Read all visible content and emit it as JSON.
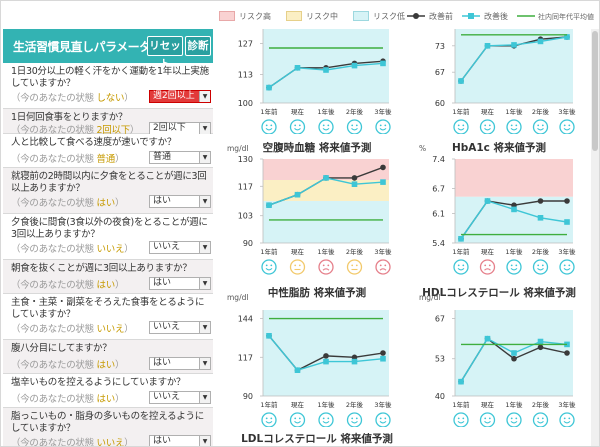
{
  "legend": {
    "risk_high": "リスク高",
    "risk_mid": "リスク中",
    "risk_low": "リスク低",
    "before": "改善前",
    "after": "改善後",
    "average": "社内同年代平均値"
  },
  "colors": {
    "teal": "#33b3b3",
    "before": "#3a3a3a",
    "after": "#3ec6d6",
    "average": "#3fae3f",
    "risk_high": "#f9d2d2",
    "risk_mid": "#fbefc4",
    "risk_low": "#d6f3f6",
    "face_good": "#3ec6d6",
    "face_mid": "#f2c96b",
    "face_bad": "#e57f8a"
  },
  "panel": {
    "title": "生活習慣見直しパラメータ",
    "reset": "リセット",
    "diagnose": "診断",
    "questions": [
      {
        "text": "1日30分以上の軽く汗をかく運動を1年以上実施していますか？",
        "state_prefix": "（今のあなたの状態",
        "state_value": "しない",
        "state_suffix": "）",
        "select": "週2回以上"
      },
      {
        "text": "1日何回食事をとりますか？",
        "state_prefix": "（今のあなたの状態",
        "state_value": "2回以下",
        "state_suffix": "）",
        "select": "2回以下"
      },
      {
        "text": "人と比較して食べる速度が速いですか？",
        "state_prefix": "（今のあなたの状態",
        "state_value": "普通",
        "state_suffix": "）",
        "select": "普通"
      },
      {
        "text": "就寝前の2時間以内に夕食をとることが週に3回以上ありますか？",
        "state_prefix": "（今のあなたの状態",
        "state_value": "はい",
        "state_suffix": "）",
        "select": "はい"
      },
      {
        "text": "夕食後に間食(3食以外の夜食)をとることが週に3回以上ありますか？",
        "state_prefix": "（今のあなたの状態",
        "state_value": "いいえ",
        "state_suffix": "）",
        "select": "いいえ"
      },
      {
        "text": "朝食を抜くことが週に3回以上ありますか？",
        "state_prefix": "（今のあなたの状態",
        "state_value": "はい",
        "state_suffix": "）",
        "select": "はい"
      },
      {
        "text": "主食・主菜・副菜をそろえた食事をとるようにしていますか？",
        "state_prefix": "（今のあなたの状態",
        "state_value": "いいえ",
        "state_suffix": "）",
        "select": "いいえ"
      },
      {
        "text": "腹八分目にしてますか？",
        "state_prefix": "（今のあなたの状態",
        "state_value": "はい",
        "state_suffix": "）",
        "select": "はい"
      },
      {
        "text": "塩辛いものを控えるようにしていますか？",
        "state_prefix": "（今のあなたの状態",
        "state_value": "はい",
        "state_suffix": "）",
        "select": "いいえ"
      },
      {
        "text": "脂っこいもの・脂身の多いものを控えるようにしていますか？",
        "state_prefix": "（今のあなたの状態",
        "state_value": "いいえ",
        "state_suffix": "）",
        "select": "はい"
      }
    ]
  },
  "chart_data": [
    {
      "type": "line",
      "title": "",
      "unit": "",
      "x": [
        "1年前",
        "現在",
        "1年後",
        "2年後",
        "3年後"
      ],
      "y_ticks": [
        100,
        113,
        127
      ],
      "ylim": [
        100,
        130
      ],
      "bands": [
        {
          "risk": "low",
          "from": 100,
          "to": 130
        }
      ],
      "series": [
        {
          "name": "改善前",
          "values": [
            107,
            116,
            116,
            118,
            119
          ]
        },
        {
          "name": "改善後",
          "values": [
            107,
            116,
            115,
            117,
            118
          ]
        },
        {
          "name": "社内同年代平均値",
          "values": [
            125,
            125,
            125,
            125,
            125
          ]
        }
      ],
      "faces": [
        "good",
        "good",
        "good",
        "good",
        "good"
      ]
    },
    {
      "type": "line",
      "title": "",
      "unit": "",
      "x": [
        "1年前",
        "現在",
        "1年後",
        "2年後",
        "3年後"
      ],
      "y_ticks": [
        60,
        67,
        73
      ],
      "ylim": [
        60,
        75
      ],
      "bands": [
        {
          "risk": "low",
          "from": 60,
          "to": 75
        }
      ],
      "series": [
        {
          "name": "改善前",
          "values": [
            65,
            73,
            73,
            74.5,
            75
          ]
        },
        {
          "name": "改善後",
          "values": [
            65,
            73,
            73.2,
            74,
            75
          ]
        },
        {
          "name": "社内同年代平均値",
          "values": [
            75.5,
            75.5,
            75.5,
            75.5,
            75.5
          ]
        }
      ],
      "faces": [
        "good",
        "good",
        "good",
        "good",
        "good"
      ]
    },
    {
      "type": "line",
      "title": "空腹時血糖 将来値予測",
      "unit": "mg/dl",
      "x": [
        "1年前",
        "現在",
        "1年後",
        "2年後",
        "3年後"
      ],
      "y_ticks": [
        90,
        103,
        117,
        130
      ],
      "ylim": [
        90,
        130
      ],
      "bands": [
        {
          "risk": "high",
          "from": 120,
          "to": 130
        },
        {
          "risk": "mid",
          "from": 110,
          "to": 120
        },
        {
          "risk": "low",
          "from": 90,
          "to": 110
        }
      ],
      "series": [
        {
          "name": "改善前",
          "values": [
            108,
            113,
            121,
            121,
            126
          ]
        },
        {
          "name": "改善後",
          "values": [
            108,
            113,
            121,
            118,
            119
          ]
        },
        {
          "name": "社内同年代平均値",
          "values": [
            101,
            101,
            101,
            101,
            101
          ]
        }
      ],
      "faces": [
        "good",
        "mid",
        "bad",
        "mid",
        "bad"
      ]
    },
    {
      "type": "line",
      "title": "HbA1c 将来値予測",
      "unit": "%",
      "x": [
        "1年前",
        "現在",
        "1年後",
        "2年後",
        "3年後"
      ],
      "y_ticks": [
        5.4,
        6.1,
        6.7,
        7.4
      ],
      "ylim": [
        5.4,
        7.4
      ],
      "bands": [
        {
          "risk": "high",
          "from": 6.5,
          "to": 7.4
        },
        {
          "risk": "low",
          "from": 5.4,
          "to": 6.5
        }
      ],
      "series": [
        {
          "name": "改善前",
          "values": [
            5.5,
            6.4,
            6.3,
            6.4,
            6.4
          ]
        },
        {
          "name": "改善後",
          "values": [
            5.5,
            6.4,
            6.2,
            6.0,
            5.9
          ]
        },
        {
          "name": "社内同年代平均値",
          "values": [
            5.6,
            5.6,
            5.6,
            5.6,
            5.6
          ]
        }
      ],
      "faces": [
        "good",
        "bad",
        "good",
        "good",
        "good"
      ]
    },
    {
      "type": "line",
      "title": "中性脂肪 将来値予測",
      "unit": "mg/dl",
      "x": [
        "1年前",
        "現在",
        "1年後",
        "2年後",
        "3年後"
      ],
      "y_ticks": [
        90,
        117,
        144
      ],
      "ylim": [
        90,
        150
      ],
      "bands": [
        {
          "risk": "low",
          "from": 90,
          "to": 150
        }
      ],
      "series": [
        {
          "name": "改善前",
          "values": [
            132,
            108,
            118,
            117,
            120
          ]
        },
        {
          "name": "改善後",
          "values": [
            132,
            108,
            114,
            114,
            116
          ]
        },
        {
          "name": "社内同年代平均値",
          "values": [
            144,
            144,
            144,
            144,
            144
          ]
        }
      ],
      "faces": [
        "good",
        "good",
        "good",
        "good",
        "good"
      ]
    },
    {
      "type": "line",
      "title": "HDLコレステロール 将来値予測",
      "unit": "mg/dl",
      "x": [
        "1年前",
        "現在",
        "1年後",
        "2年後",
        "3年後"
      ],
      "y_ticks": [
        40,
        53,
        67
      ],
      "ylim": [
        40,
        70
      ],
      "bands": [
        {
          "risk": "low",
          "from": 40,
          "to": 70
        }
      ],
      "series": [
        {
          "name": "改善前",
          "values": [
            45,
            60,
            53,
            57,
            55
          ]
        },
        {
          "name": "改善後",
          "values": [
            45,
            60,
            55,
            59,
            58
          ]
        },
        {
          "name": "社内同年代平均値",
          "values": [
            58,
            58,
            58,
            58,
            58
          ]
        }
      ],
      "faces": [
        "good",
        "good",
        "good",
        "good",
        "good"
      ]
    },
    {
      "type": "line",
      "title": "LDLコレステロール 将来値予測",
      "unit": "",
      "x": [],
      "y_ticks": [],
      "series": []
    }
  ]
}
